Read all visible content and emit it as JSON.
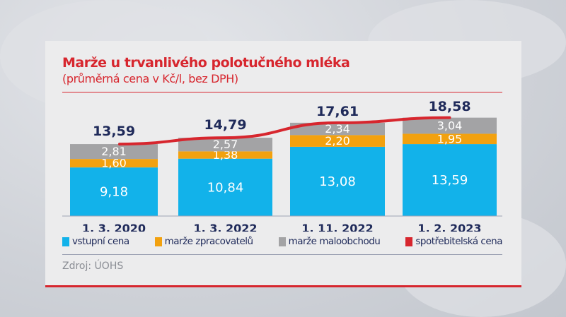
{
  "chart_data": {
    "type": "bar",
    "stacked": true,
    "title": "Marže u trvanlivého polotučného mléka",
    "subtitle": "(průměrná cena v Kč/l, bez DPH)",
    "categories": [
      "1. 3. 2020",
      "1. 3. 2022",
      "1. 11. 2022",
      "1. 2. 2023"
    ],
    "series": [
      {
        "name": "vstupní cena",
        "color": "#12b2ea",
        "values": [
          9.18,
          10.84,
          13.08,
          13.59
        ],
        "labels": [
          "9,18",
          "10,84",
          "13,08",
          "13,59"
        ]
      },
      {
        "name": "marže zpracovatelů",
        "color": "#f2a10f",
        "values": [
          1.6,
          1.38,
          2.2,
          1.95
        ],
        "labels": [
          "1,60",
          "1,38",
          "2,20",
          "1,95"
        ]
      },
      {
        "name": "marže maloobchodu",
        "color": "#a3a3a5",
        "values": [
          2.81,
          2.57,
          2.34,
          3.04
        ],
        "labels": [
          "2,81",
          "2,57",
          "2,34",
          "3,04"
        ]
      },
      {
        "name": "spotřebitelská cena",
        "type": "line",
        "color": "#d7262e",
        "values": [
          13.59,
          14.79,
          17.61,
          18.58
        ],
        "labels": [
          "13,59",
          "14,79",
          "17,61",
          "18,58"
        ]
      }
    ],
    "ylim": [
      0,
      20
    ],
    "grid": false,
    "legend": "bottom",
    "source": "Zdroj: ÚOHS"
  }
}
